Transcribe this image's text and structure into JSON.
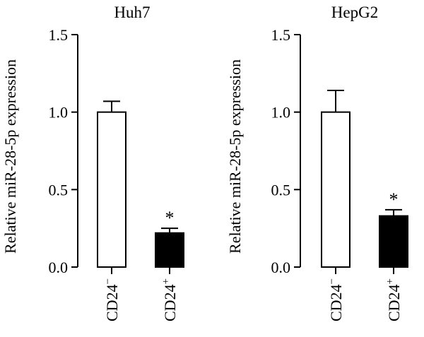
{
  "colors": {
    "axis": "#000000",
    "bar_fill_cd24_minus": "#ffffff",
    "bar_fill_cd24_plus": "#000000"
  },
  "chart_data": [
    {
      "type": "bar",
      "title": "Huh7",
      "ylabel": "Relative miR-28-5p expression",
      "ylim": [
        0,
        1.5
      ],
      "yticks": [
        "0.0",
        "0.5",
        "1.0",
        "1.5"
      ],
      "categories": [
        {
          "base": "CD24",
          "sup": "−"
        },
        {
          "base": "CD24",
          "sup": "+"
        }
      ],
      "values": [
        1.0,
        0.22
      ],
      "errors": [
        0.07,
        0.03
      ],
      "annotations": [
        "",
        "*"
      ],
      "grid": false
    },
    {
      "type": "bar",
      "title": "HepG2",
      "ylabel": "Relative miR-28-5p expression",
      "ylim": [
        0,
        1.5
      ],
      "yticks": [
        "0.0",
        "0.5",
        "1.0",
        "1.5"
      ],
      "categories": [
        {
          "base": "CD24",
          "sup": "−"
        },
        {
          "base": "CD24",
          "sup": "+"
        }
      ],
      "values": [
        1.0,
        0.33
      ],
      "errors": [
        0.14,
        0.04
      ],
      "annotations": [
        "",
        "*"
      ],
      "grid": false
    }
  ]
}
